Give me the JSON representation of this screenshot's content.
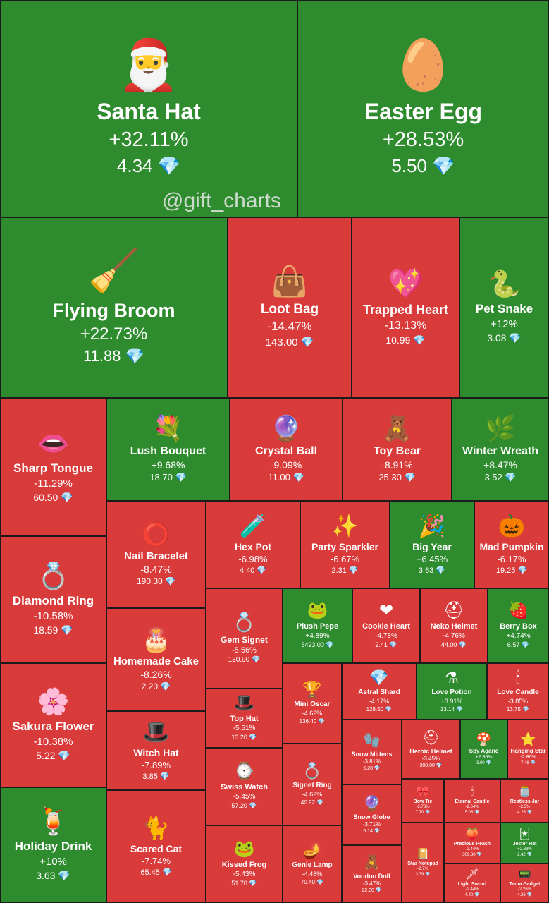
{
  "watermark": "@gift_charts",
  "colors": {
    "up": "#2e8b2e",
    "down": "#d93a3a",
    "gem": "#6fd3ff"
  },
  "chart_data": {
    "type": "treemap",
    "currency_icon": "diamond",
    "items": [
      {
        "name": "Santa Hat",
        "change": "+32.11%",
        "price": "4.34",
        "icon": "🎅"
      },
      {
        "name": "Easter Egg",
        "change": "+28.53%",
        "price": "5.50",
        "icon": "🥚"
      },
      {
        "name": "Flying Broom",
        "change": "+22.73%",
        "price": "11.88",
        "icon": "🧹"
      },
      {
        "name": "Loot Bag",
        "change": "-14.47%",
        "price": "143.00",
        "icon": "👜"
      },
      {
        "name": "Trapped Heart",
        "change": "-13.13%",
        "price": "10.99",
        "icon": "💖"
      },
      {
        "name": "Pet Snake",
        "change": "+12%",
        "price": "3.08",
        "icon": "🐍"
      },
      {
        "name": "Sharp Tongue",
        "change": "-11.29%",
        "price": "60.50",
        "icon": "👄"
      },
      {
        "name": "Lush Bouquet",
        "change": "+9.68%",
        "price": "18.70",
        "icon": "💐"
      },
      {
        "name": "Crystal Ball",
        "change": "-9.09%",
        "price": "11.00",
        "icon": "🔮"
      },
      {
        "name": "Toy Bear",
        "change": "-8.91%",
        "price": "25.30",
        "icon": "🧸"
      },
      {
        "name": "Winter Wreath",
        "change": "+8.47%",
        "price": "3.52",
        "icon": "🌿"
      },
      {
        "name": "Diamond Ring",
        "change": "-10.58%",
        "price": "18.59",
        "icon": "💍"
      },
      {
        "name": "Nail Bracelet",
        "change": "-8.47%",
        "price": "190.30",
        "icon": "⭕"
      },
      {
        "name": "Hex Pot",
        "change": "-6.98%",
        "price": "4.40",
        "icon": "🧪"
      },
      {
        "name": "Party Sparkler",
        "change": "-6.67%",
        "price": "2.31",
        "icon": "✨"
      },
      {
        "name": "Big Year",
        "change": "+6.45%",
        "price": "3.63",
        "icon": "🎉"
      },
      {
        "name": "Mad Pumpkin",
        "change": "-6.17%",
        "price": "19.25",
        "icon": "🎃"
      },
      {
        "name": "Homemade Cake",
        "change": "-8.26%",
        "price": "2.20",
        "icon": "🎂"
      },
      {
        "name": "Gem Signet",
        "change": "-5.56%",
        "price": "130.90",
        "icon": "💍"
      },
      {
        "name": "Plush Pepe",
        "change": "+4.89%",
        "price": "5423.00",
        "icon": "🐸"
      },
      {
        "name": "Cookie Heart",
        "change": "-4.78%",
        "price": "2.41",
        "icon": "❤"
      },
      {
        "name": "Neko Helmet",
        "change": "-4.76%",
        "price": "44.00",
        "icon": "⛑"
      },
      {
        "name": "Berry Box",
        "change": "+4.74%",
        "price": "6.57",
        "icon": "🍓"
      },
      {
        "name": "Sakura Flower",
        "change": "-10.38%",
        "price": "5.22",
        "icon": "🌸"
      },
      {
        "name": "Witch Hat",
        "change": "-7.89%",
        "price": "3.85",
        "icon": "🎩"
      },
      {
        "name": "Top Hat",
        "change": "-5.51%",
        "price": "13.20",
        "icon": "🎩"
      },
      {
        "name": "Mini Oscar",
        "change": "-4.62%",
        "price": "136.40",
        "icon": "🏆"
      },
      {
        "name": "Astral Shard",
        "change": "-4.17%",
        "price": "128.50",
        "icon": "💎"
      },
      {
        "name": "Love Potion",
        "change": "+3.91%",
        "price": "13.14",
        "icon": "⚗"
      },
      {
        "name": "Love Candle",
        "change": "-3.85%",
        "price": "13.75",
        "icon": "🕯"
      },
      {
        "name": "Swiss Watch",
        "change": "-5.45%",
        "price": "57.20",
        "icon": "⌚"
      },
      {
        "name": "Signet Ring",
        "change": "-4.62%",
        "price": "40.92",
        "icon": "💍"
      },
      {
        "name": "Snow Mittens",
        "change": "-3.81%",
        "price": "5.28",
        "icon": "🧤"
      },
      {
        "name": "Heroic Helmet",
        "change": "-3.45%",
        "price": "308.00",
        "icon": "⛑"
      },
      {
        "name": "Spy Agaric",
        "change": "+2.86%",
        "price": "3.90",
        "icon": "🍄"
      },
      {
        "name": "Hanging Star",
        "change": "-2.86%",
        "price": "7.48",
        "icon": "⭐"
      },
      {
        "name": "Holiday Drink",
        "change": "+10%",
        "price": "3.63",
        "icon": "🍹"
      },
      {
        "name": "Scared Cat",
        "change": "-7.74%",
        "price": "65.45",
        "icon": "🐈"
      },
      {
        "name": "Kissed Frog",
        "change": "-5.43%",
        "price": "51.70",
        "icon": "🐸"
      },
      {
        "name": "Genie Lamp",
        "change": "-4.48%",
        "price": "70.40",
        "icon": "🪔"
      },
      {
        "name": "Snow Globe",
        "change": "-3.71%",
        "price": "5.14",
        "icon": "🔮"
      },
      {
        "name": "Voodoo Doll",
        "change": "-3.47%",
        "price": "22.00",
        "icon": "🧸"
      },
      {
        "name": "Bow Tie",
        "change": "-2.78%",
        "price": "7.70",
        "icon": "🎀"
      },
      {
        "name": "Star Notepad",
        "change": "-2.7%",
        "price": "3.39",
        "icon": "📔"
      },
      {
        "name": "Eternal Candle",
        "change": "-2.64%",
        "price": "5.06",
        "icon": "🕯"
      },
      {
        "name": "Precious Peach",
        "change": "-2.44%",
        "price": "309.30",
        "icon": "🍑"
      },
      {
        "name": "Light Sword",
        "change": "-2.44%",
        "price": "4.40",
        "icon": "🗡"
      },
      {
        "name": "Restless Jar",
        "change": "-2.3%",
        "price": "4.25",
        "icon": "🫙"
      },
      {
        "name": "Jester Hat",
        "change": "+2.33%",
        "price": "2.42",
        "icon": "🃏"
      },
      {
        "name": "Tama Gadget",
        "change": "-2.26%",
        "price": "4.26",
        "icon": "📟"
      }
    ]
  }
}
